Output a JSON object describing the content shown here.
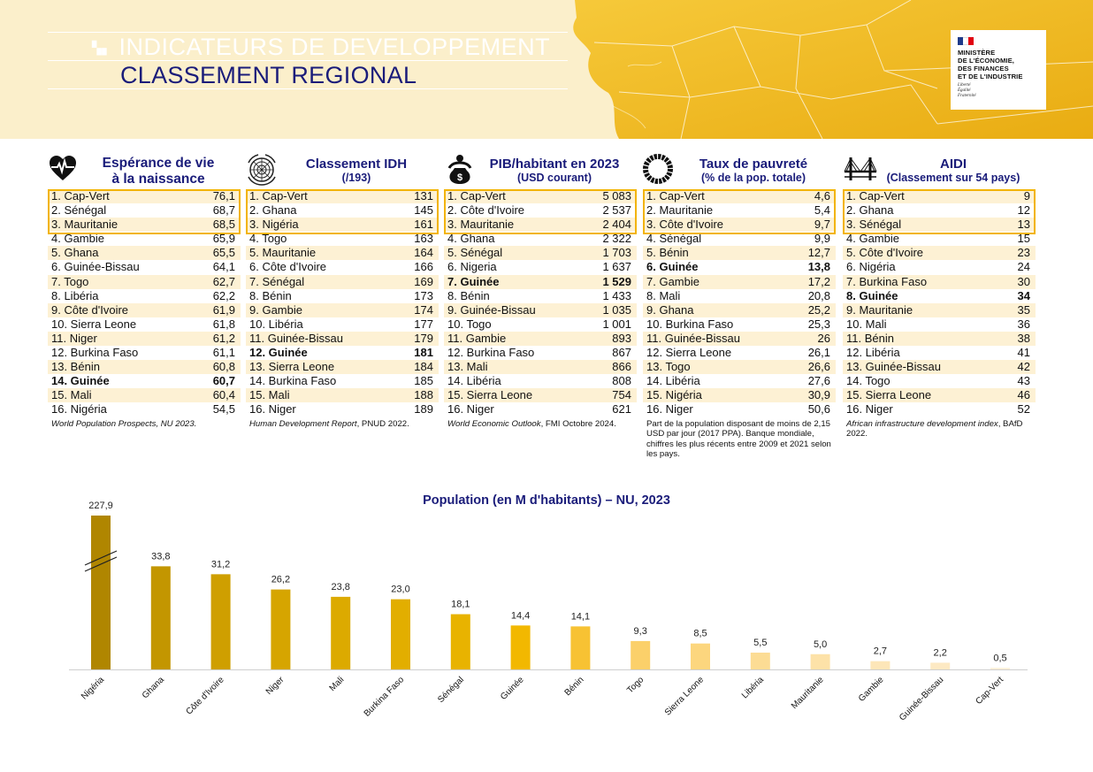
{
  "header": {
    "title_line1": "INDICATEURS DE DEVELOPPEMENT",
    "title_line2": "CLASSEMENT REGIONAL",
    "ministry_lines": [
      "MINISTÈRE",
      "DE L'ÉCONOMIE,",
      "DES FINANCES",
      "ET DE L'INDUSTRIE"
    ],
    "motto": [
      "Liberté",
      "Égalité",
      "Fraternité"
    ],
    "colors": {
      "title_blue": "#1a1c7a",
      "accent_yellow": "#f2b400",
      "flag_blue": "#1e3a8a",
      "flag_red": "#e1000f"
    }
  },
  "tables": [
    {
      "icon": "heart-pulse-icon",
      "title": "Espérance de vie",
      "title2": "à la naissance",
      "subtitle": "",
      "rows": [
        {
          "label": "1. Cap-Vert",
          "value": "76,1"
        },
        {
          "label": "2. Sénégal",
          "value": "68,7"
        },
        {
          "label": "3. Mauritanie",
          "value": "68,5"
        },
        {
          "label": "4. Gambie",
          "value": "65,9"
        },
        {
          "label": "5. Ghana",
          "value": "65,5"
        },
        {
          "label": "6. Guinée-Bissau",
          "value": "64,1"
        },
        {
          "label": "7. Togo",
          "value": "62,7"
        },
        {
          "label": "8. Libéria",
          "value": "62,2"
        },
        {
          "label": "9. Côte d'Ivoire",
          "value": "61,9"
        },
        {
          "label": "10. Sierra Leone",
          "value": "61,8"
        },
        {
          "label": "11. Niger",
          "value": "61,2"
        },
        {
          "label": "12. Burkina Faso",
          "value": "61,1"
        },
        {
          "label": "13. Bénin",
          "value": "60,8"
        },
        {
          "label": "14. Guinée",
          "value": "60,7",
          "bold": true
        },
        {
          "label": "15. Mali",
          "value": "60,4"
        },
        {
          "label": "16. Nigéria",
          "value": "54,5"
        }
      ],
      "source_italic": "World Population Prospects, NU 2023.",
      "source_plain": ""
    },
    {
      "icon": "un-emblem-icon",
      "title": "Classement IDH",
      "title2": "",
      "subtitle": "(/193)",
      "rows": [
        {
          "label": "1. Cap-Vert",
          "value": "131"
        },
        {
          "label": "2. Ghana",
          "value": "145"
        },
        {
          "label": "3. Nigéria",
          "value": "161"
        },
        {
          "label": "4. Togo",
          "value": "163"
        },
        {
          "label": "5. Mauritanie",
          "value": "164"
        },
        {
          "label": "6. Côte d'Ivoire",
          "value": "166"
        },
        {
          "label": "7. Sénégal",
          "value": "169"
        },
        {
          "label": "8. Bénin",
          "value": "173"
        },
        {
          "label": "9. Gambie",
          "value": "174"
        },
        {
          "label": "10. Libéria",
          "value": "177"
        },
        {
          "label": "11. Guinée-Bissau",
          "value": "179"
        },
        {
          "label": "12. Guinée",
          "value": "181",
          "bold": true
        },
        {
          "label": "13. Sierra Leone",
          "value": "184"
        },
        {
          "label": "14. Burkina Faso",
          "value": "185"
        },
        {
          "label": "15. Mali",
          "value": "188"
        },
        {
          "label": "16. Niger",
          "value": "189"
        }
      ],
      "source_italic": "Human Development Report",
      "source_plain": ", PNUD 2022."
    },
    {
      "icon": "money-bag-person-icon",
      "title": "PIB/habitant en 2023",
      "title2": "",
      "subtitle": "(USD courant)",
      "rows": [
        {
          "label": "1. Cap-Vert",
          "value": "5 083"
        },
        {
          "label": "2. Côte d'Ivoire",
          "value": "2 537"
        },
        {
          "label": "3. Mauritanie",
          "value": "2 404"
        },
        {
          "label": "4. Ghana",
          "value": "2 322"
        },
        {
          "label": "5. Sénégal",
          "value": "1 703"
        },
        {
          "label": "6. Nigeria",
          "value": "1 637"
        },
        {
          "label": "7. Guinée",
          "value": "1 529",
          "bold": true
        },
        {
          "label": "8. Bénin",
          "value": "1 433"
        },
        {
          "label": "9. Guinée-Bissau",
          "value": "1 035"
        },
        {
          "label": "10. Togo",
          "value": "1 001"
        },
        {
          "label": "11. Gambie",
          "value": "893"
        },
        {
          "label": "12. Burkina Faso",
          "value": "867"
        },
        {
          "label": "13. Mali",
          "value": "866"
        },
        {
          "label": "14. Libéria",
          "value": "808"
        },
        {
          "label": "15. Sierra Leone",
          "value": "754"
        },
        {
          "label": "16. Niger",
          "value": "621"
        }
      ],
      "source_italic": "World Economic Outlook",
      "source_plain": ", FMI Octobre 2024."
    },
    {
      "icon": "poverty-ring-icon",
      "title": "Taux de pauvreté",
      "title2": "",
      "subtitle": "(% de la pop. totale)",
      "rows": [
        {
          "label": "1. Cap-Vert",
          "value": "4,6"
        },
        {
          "label": "2. Mauritanie",
          "value": "5,4"
        },
        {
          "label": "3. Côte d'Ivoire",
          "value": "9,7"
        },
        {
          "label": "4. Sénégal",
          "value": "9,9"
        },
        {
          "label": "5. Bénin",
          "value": "12,7"
        },
        {
          "label": "6. Guinée",
          "value": "13,8",
          "bold": true
        },
        {
          "label": "7. Gambie",
          "value": "17,2"
        },
        {
          "label": "8. Mali",
          "value": "20,8"
        },
        {
          "label": "9. Ghana",
          "value": "25,2"
        },
        {
          "label": "10. Burkina Faso",
          "value": "25,3"
        },
        {
          "label": "11. Guinée-Bissau",
          "value": "26"
        },
        {
          "label": "12. Sierra Leone",
          "value": "26,1"
        },
        {
          "label": "13. Togo",
          "value": "26,6"
        },
        {
          "label": "14. Libéria",
          "value": "27,6"
        },
        {
          "label": "15. Nigéria",
          "value": "30,9"
        },
        {
          "label": "16. Niger",
          "value": "50,6"
        }
      ],
      "source_italic": "",
      "source_plain": "Part de la population disposant de moins de 2,15 USD par jour (2017 PPA). Banque mondiale, chiffres les plus récents entre 2009 et 2021 selon les pays."
    },
    {
      "icon": "bridge-icon",
      "title": "AIDI",
      "title2": "",
      "subtitle": "(Classement sur 54 pays)",
      "rows": [
        {
          "label": "1. Cap-Vert",
          "value": "9"
        },
        {
          "label": "2. Ghana",
          "value": "12"
        },
        {
          "label": "3. Sénégal",
          "value": "13"
        },
        {
          "label": "4. Gambie",
          "value": "15"
        },
        {
          "label": "5. Côte d'Ivoire",
          "value": "23"
        },
        {
          "label": "6. Nigéria",
          "value": "24"
        },
        {
          "label": "7. Burkina Faso",
          "value": "30"
        },
        {
          "label": "8. Guinée",
          "value": "34",
          "bold": true
        },
        {
          "label": "9. Mauritanie",
          "value": "35"
        },
        {
          "label": "10. Mali",
          "value": "36"
        },
        {
          "label": "11. Bénin",
          "value": "38"
        },
        {
          "label": "12. Libéria",
          "value": "41"
        },
        {
          "label": "13. Guinée-Bissau",
          "value": "42"
        },
        {
          "label": "14. Togo",
          "value": "43"
        },
        {
          "label": "15. Sierra Leone",
          "value": "46"
        },
        {
          "label": "16. Niger",
          "value": "52"
        }
      ],
      "source_italic": "African infrastructure development index",
      "source_plain": ", BAfD 2022."
    }
  ],
  "chart_data": {
    "type": "bar",
    "title": "Population (en M d'habitants) – NU, 2023",
    "xlabel": "",
    "ylabel": "",
    "axis_break_on": "Nigéria",
    "categories": [
      "Nigéria",
      "Ghana",
      "Côte d'Ivoire",
      "Niger",
      "Mali",
      "Burkina Faso",
      "Sénégal",
      "Guinée",
      "Bénin",
      "Togo",
      "Sierra Leone",
      "Libéria",
      "Mauritanie",
      "Gambie",
      "Guinée-Bissau",
      "Cap-Vert"
    ],
    "values": [
      227.9,
      33.8,
      31.2,
      26.2,
      23.8,
      23.0,
      18.1,
      14.4,
      14.1,
      9.3,
      8.5,
      5.5,
      5.0,
      2.7,
      2.2,
      0.5
    ],
    "value_labels": [
      "227,9",
      "33,8",
      "31,2",
      "26,2",
      "23,8",
      "23,0",
      "18,1",
      "14,4",
      "14,1",
      "9,3",
      "8,5",
      "5,5",
      "5,0",
      "2,7",
      "2,2",
      "0,5"
    ],
    "bar_colors": [
      "#b08600",
      "#c39600",
      "#cf9f00",
      "#d6a500",
      "#dcaa00",
      "#e2ae00",
      "#e8b300",
      "#f2b800",
      "#f7c233",
      "#fbd06a",
      "#fcd67e",
      "#fcdc94",
      "#fde2a8",
      "#fde6b8",
      "#fde9c3",
      "#feefd6"
    ],
    "grid": false,
    "legend": "none"
  }
}
